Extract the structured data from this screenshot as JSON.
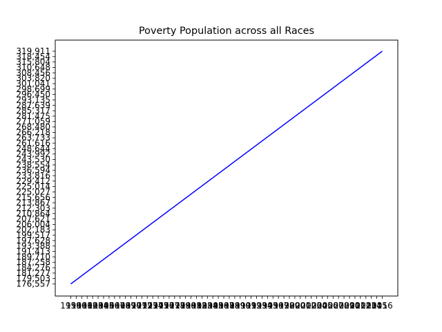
{
  "chart_data": {
    "type": "line",
    "title": "Poverty Population across all Races",
    "xlabel": "",
    "ylabel": "",
    "x_categories": [
      "1959",
      "1960",
      "1961",
      "1962",
      "1963",
      "1964",
      "1965",
      "1966",
      "1967",
      "1968",
      "1969",
      "1970",
      "1971",
      "1972",
      "1973",
      "1974",
      "1975",
      "1976",
      "1977",
      "1978",
      "1979",
      "1980",
      "1981",
      "1982",
      "1983",
      "1984",
      "1985",
      "1986",
      "1987",
      "1988",
      "1989",
      "1990",
      "1991",
      "1992",
      "1993",
      "1994",
      "1995",
      "1996",
      "1997",
      "1998",
      "1999",
      "2000",
      "2001",
      "2002",
      "2003",
      "2004",
      "2005",
      "2006",
      "2007",
      "2008",
      "2009",
      "2010",
      "2011",
      "2012",
      "2013",
      "2014",
      "2015",
      "2016"
    ],
    "y_categories": [
      "176,557",
      "179,503",
      "181,277",
      "184,276",
      "187,258",
      "189,710",
      "191,413",
      "193,388",
      "197,628",
      "199,517",
      "202,183",
      "206,004",
      "207,621",
      "210,864",
      "212,303",
      "213,867",
      "215,656",
      "225,027",
      "225,014",
      "229,412",
      "233,816",
      "236,594",
      "238,554",
      "243,530",
      "243,992",
      "248,644",
      "261,616",
      "263,733",
      "266,218",
      "268,480",
      "271,059",
      "281,475",
      "285,317",
      "287,639",
      "293,135",
      "296,450",
      "298,699",
      "301,041",
      "303,820",
      "308,456",
      "310,648",
      "315,804",
      "318,454",
      "319,911"
    ],
    "series": [
      {
        "color": "#0000ff",
        "points": [
          [
            "1959",
            "176,557"
          ],
          [
            "2016",
            "319,911"
          ]
        ]
      }
    ],
    "grid": false,
    "legend": "none"
  }
}
